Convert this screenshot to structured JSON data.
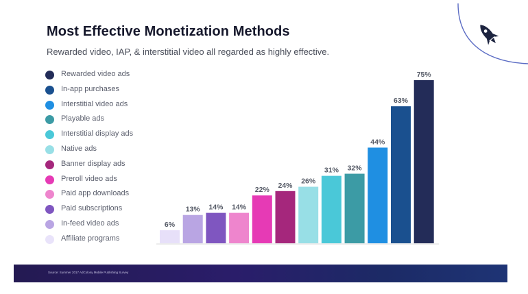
{
  "title": "Most Effective Monetization Methods",
  "subtitle": "Rewarded video, IAP, & interstitial video all regarded as highly effective.",
  "source": "Source: Summer 2017 AdColony Mobile Publishing Survey",
  "chart_data": {
    "type": "bar",
    "title": "Most Effective Monetization Methods",
    "subtitle": "Rewarded video, IAP, & interstitial video all regarded as highly effective.",
    "xlabel": "",
    "ylabel": "",
    "ylim": [
      0,
      75
    ],
    "grid": false,
    "legend_position": "left",
    "value_suffix": "%",
    "categories": [
      "Affiliate programs",
      "In-feed video ads",
      "Paid subscriptions",
      "Paid app downloads",
      "Preroll video ads",
      "Banner display ads",
      "Native ads",
      "Interstitial display ads",
      "Playable ads",
      "Interstitial video ads",
      "In-app purchases",
      "Rewarded video ads"
    ],
    "values": [
      6,
      13,
      14,
      14,
      22,
      24,
      26,
      31,
      32,
      44,
      63,
      75
    ],
    "colors": [
      "#e7e0f9",
      "#b9a5e3",
      "#7f56c0",
      "#ee85cd",
      "#e63ab5",
      "#a5277c",
      "#98dfe6",
      "#4ac8d8",
      "#3c9ba5",
      "#1f8fe2",
      "#1a508f",
      "#232c58"
    ]
  },
  "legend": [
    {
      "label": "Rewarded video ads",
      "color": "#232c58"
    },
    {
      "label": "In-app purchases",
      "color": "#1a508f"
    },
    {
      "label": "Interstitial video ads",
      "color": "#1f8fe2"
    },
    {
      "label": "Playable ads",
      "color": "#3c9ba5"
    },
    {
      "label": "Interstitial display ads",
      "color": "#4ac8d8"
    },
    {
      "label": "Native ads",
      "color": "#98dfe6"
    },
    {
      "label": "Banner display ads",
      "color": "#a5277c"
    },
    {
      "label": "Preroll video ads",
      "color": "#e63ab5"
    },
    {
      "label": "Paid app downloads",
      "color": "#ee85cd"
    },
    {
      "label": "Paid subscriptions",
      "color": "#7f56c0"
    },
    {
      "label": "In-feed video ads",
      "color": "#b9a5e3"
    },
    {
      "label": "Affiliate programs",
      "color": "#e7e0f9"
    }
  ],
  "logo_icon": "rocket-icon",
  "colors": {
    "footer_dark": "#241a52",
    "accent_line": "#5b6cc4"
  }
}
